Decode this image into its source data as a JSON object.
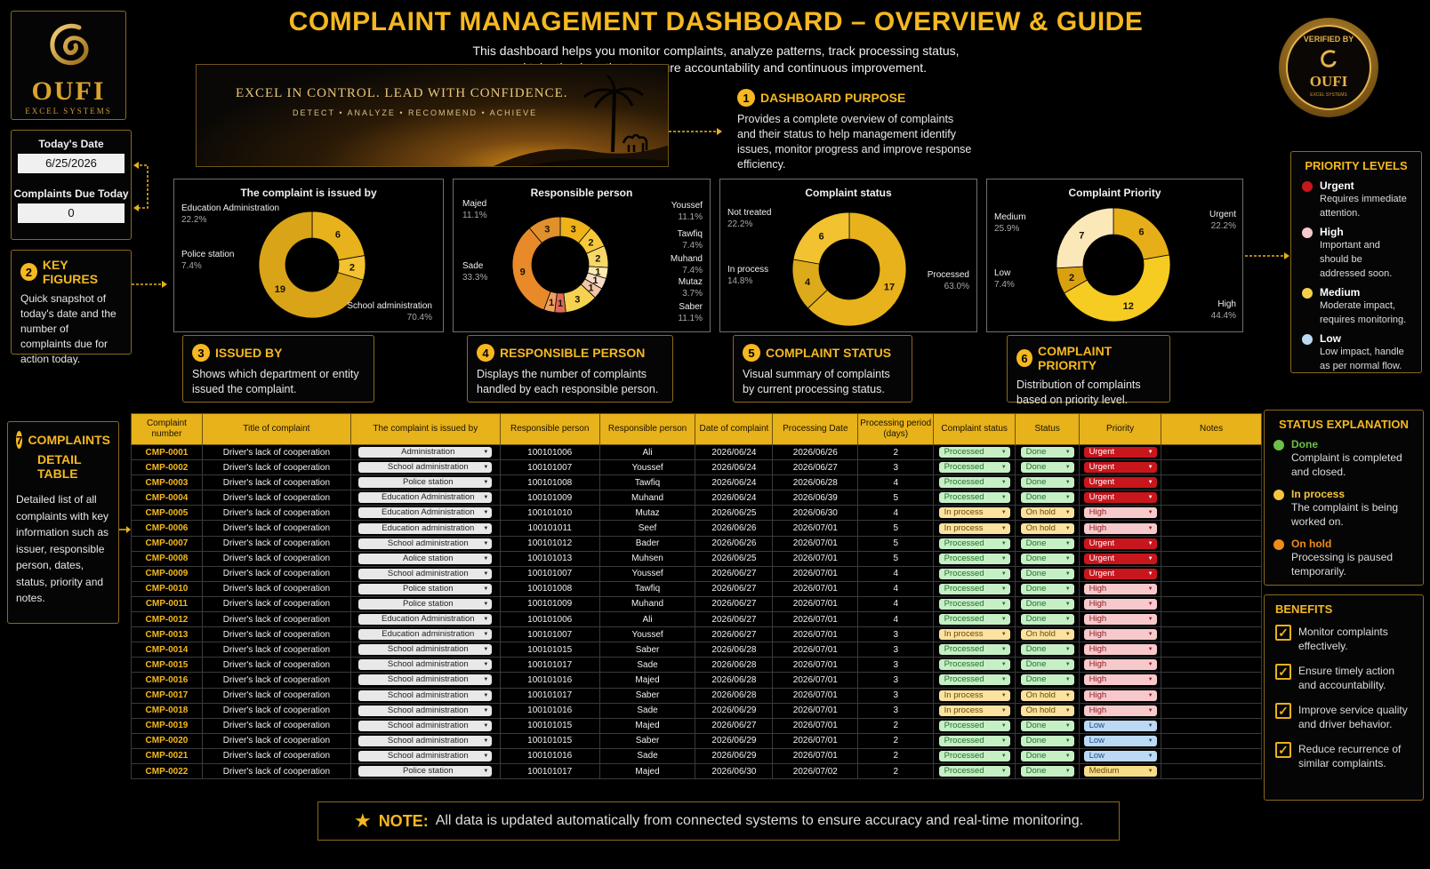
{
  "logo": {
    "brand": "OUFI",
    "sub": "EXCEL SYSTEMS"
  },
  "header": {
    "title": "COMPLAINT MANAGEMENT DASHBOARD – OVERVIEW & GUIDE",
    "intro": "This dashboard helps you monitor complaints, analyze patterns, track processing status, and take timely action to ensure accountability and continuous improvement."
  },
  "banner": {
    "slogan": "EXCEL IN CONTROL. LEAD WITH CONFIDENCE.",
    "tags": "DETECT • ANALYZE • RECOMMEND • ACHIEVE"
  },
  "seal": {
    "top": "VERIFIED BY",
    "brand": "OUFI",
    "sub": "EXCEL SYSTEMS"
  },
  "key_box": {
    "date_label": "Today's Date",
    "date_value": "6/25/2026",
    "due_label": "Complaints Due Today",
    "due_value": "0"
  },
  "sections": {
    "purpose": {
      "num": "1",
      "title": "DASHBOARD PURPOSE",
      "text": "Provides a complete overview of complaints and their status to help management identify issues, monitor progress and improve response efficiency."
    },
    "key_figures": {
      "num": "2",
      "title": "KEY FIGURES",
      "text": "Quick snapshot of today's date and the number of complaints due for action today."
    },
    "issued_by": {
      "num": "3",
      "title": "ISSUED BY",
      "text": "Shows which department or entity issued the complaint."
    },
    "responsible": {
      "num": "4",
      "title": "RESPONSIBLE PERSON",
      "text": "Displays the number of complaints handled by each responsible person."
    },
    "status": {
      "num": "5",
      "title": "COMPLAINT STATUS",
      "text": "Visual summary of complaints by current processing status."
    },
    "priority": {
      "num": "6",
      "title": "COMPLAINT PRIORITY",
      "text": "Distribution of complaints based on priority level."
    },
    "detail": {
      "num": "7",
      "title1": "COMPLAINTS",
      "title2": "DETAIL TABLE",
      "text": "Detailed list of all complaints with key information such as issuer, responsible person, dates, status, priority and notes."
    }
  },
  "priority_levels": {
    "title": "PRIORITY LEVELS",
    "items": [
      {
        "name": "Urgent",
        "desc": "Requires immediate attention.",
        "color": "#c8161d"
      },
      {
        "name": "High",
        "desc": "Important and should be addressed soon.",
        "color": "#f8c9cc"
      },
      {
        "name": "Medium",
        "desc": "Moderate impact, requires monitoring.",
        "color": "#f6d04a"
      },
      {
        "name": "Low",
        "desc": "Low impact, handle as per normal flow.",
        "color": "#bcd9f4"
      }
    ]
  },
  "status_explanation": {
    "title": "STATUS EXPLANATION",
    "items": [
      {
        "name": "Done",
        "desc": "Complaint is completed and closed.",
        "color": "#6cc04a"
      },
      {
        "name": "In process",
        "desc": "The complaint is being worked on.",
        "color": "#f5c542"
      },
      {
        "name": "On hold",
        "desc": "Processing is paused temporarily.",
        "color": "#f08c1a"
      }
    ]
  },
  "benefits": {
    "title": "BENEFITS",
    "items": [
      "Monitor complaints effectively.",
      "Ensure timely action and accountability.",
      "Improve service quality and driver behavior.",
      "Reduce recurrence of similar complaints."
    ]
  },
  "note": {
    "label": "NOTE:",
    "text": "All data is updated automatically from connected systems to ensure accuracy and real-time monitoring."
  },
  "chart_data": [
    {
      "type": "pie",
      "title": "The complaint is issued by",
      "slices": [
        {
          "name": "Education Administration",
          "value": 6,
          "pct": "22.2%",
          "color": "#e8b21c"
        },
        {
          "name": "Police station",
          "value": 2,
          "pct": "7.4%",
          "color": "#f2c230"
        },
        {
          "name": "School administration",
          "value": 19,
          "pct": "70.4%",
          "color": "#d9a418"
        }
      ]
    },
    {
      "type": "pie",
      "title": "Responsible person",
      "slices": [
        {
          "name": "Youssef",
          "value": 3,
          "pct": "11.1%",
          "color": "#f0b21a"
        },
        {
          "name": "Tawfiq",
          "value": 2,
          "pct": "7.4%",
          "color": "#f6c93c"
        },
        {
          "name": "Muhand",
          "value": 2,
          "pct": "7.4%",
          "color": "#f7d768"
        },
        {
          "name": "Mutaz",
          "value": 1,
          "pct": "3.7%",
          "color": "#fbe9b0"
        },
        {
          "name": "",
          "value": 1,
          "pct": "",
          "color": "#f9dcc8"
        },
        {
          "name": "",
          "value": 1,
          "pct": "",
          "color": "#f2c6a8"
        },
        {
          "name": "Saber",
          "value": 3,
          "pct": "11.1%",
          "color": "#f5d250"
        },
        {
          "name": "",
          "value": 1,
          "pct": "",
          "color": "#e06a5a"
        },
        {
          "name": "",
          "value": 1,
          "pct": "",
          "color": "#f0a060"
        },
        {
          "name": "Sade",
          "value": 9,
          "pct": "33.3%",
          "color": "#e8892a"
        },
        {
          "name": "Majed",
          "value": 3,
          "pct": "11.1%",
          "color": "#e0902c"
        }
      ]
    },
    {
      "type": "pie",
      "title": "Complaint status",
      "slices": [
        {
          "name": "Processed",
          "value": 17,
          "pct": "63.0%",
          "color": "#e8b21c"
        },
        {
          "name": "In process",
          "value": 4,
          "pct": "14.8%",
          "color": "#dcaa1a"
        },
        {
          "name": "Not treated",
          "value": 6,
          "pct": "22.2%",
          "color": "#f2c230"
        }
      ]
    },
    {
      "type": "pie",
      "title": "Complaint Priority",
      "slices": [
        {
          "name": "Urgent",
          "value": 6,
          "pct": "22.2%",
          "color": "#e6ae18"
        },
        {
          "name": "High",
          "value": 12,
          "pct": "44.4%",
          "color": "#f6cc22"
        },
        {
          "name": "Low",
          "value": 2,
          "pct": "7.4%",
          "color": "#d9a010"
        },
        {
          "name": "Medium",
          "value": 7,
          "pct": "25.9%",
          "color": "#fbe8b8"
        }
      ]
    }
  ],
  "table": {
    "headers": [
      "Complaint number",
      "Title of complaint",
      "The complaint is issued by",
      "Responsible person",
      "Responsible person",
      "Date of complaint",
      "Processing Date",
      "Processing period (days)",
      "Complaint status",
      "Status",
      "Priority",
      "Notes"
    ],
    "rows": [
      [
        "CMP-0001",
        "Driver's lack of cooperation",
        "Administration",
        "100101006",
        "Ali",
        "2026/06/24",
        "2026/06/26",
        "2",
        "Processed",
        "Done",
        "Urgent",
        ""
      ],
      [
        "CMP-0002",
        "Driver's lack of cooperation",
        "School administration",
        "100101007",
        "Youssef",
        "2026/06/24",
        "2026/06/27",
        "3",
        "Processed",
        "Done",
        "Urgent",
        ""
      ],
      [
        "CMP-0003",
        "Driver's lack of cooperation",
        "Police station",
        "100101008",
        "Tawfiq",
        "2026/06/24",
        "2026/06/28",
        "4",
        "Processed",
        "Done",
        "Urgent",
        ""
      ],
      [
        "CMP-0004",
        "Driver's lack of cooperation",
        "Education Administration",
        "100101009",
        "Muhand",
        "2026/06/24",
        "2026/06/39",
        "5",
        "Processed",
        "Done",
        "Urgent",
        ""
      ],
      [
        "CMP-0005",
        "Driver's lack of cooperation",
        "Education Administration",
        "100101010",
        "Mutaz",
        "2026/06/25",
        "2026/06/30",
        "4",
        "In process",
        "On hold",
        "High",
        ""
      ],
      [
        "CMP-0006",
        "Driver's lack of cooperation",
        "Education administration",
        "100101011",
        "Seef",
        "2026/06/26",
        "2026/07/01",
        "5",
        "In process",
        "On hold",
        "High",
        ""
      ],
      [
        "CMP-0007",
        "Driver's lack of cooperation",
        "School administration",
        "100101012",
        "Bader",
        "2026/06/26",
        "2026/07/01",
        "5",
        "Processed",
        "Done",
        "Urgent",
        ""
      ],
      [
        "CMP-0008",
        "Driver's lack of cooperation",
        "Aolice station",
        "100101013",
        "Muhsen",
        "2026/06/25",
        "2026/07/01",
        "5",
        "Processed",
        "Done",
        "Urgent",
        ""
      ],
      [
        "CMP-0009",
        "Driver's lack of cooperation",
        "School administration",
        "100101007",
        "Youssef",
        "2026/06/27",
        "2026/07/01",
        "4",
        "Processed",
        "Done",
        "Urgent",
        ""
      ],
      [
        "CMP-0010",
        "Driver's lack of cooperation",
        "Police station",
        "100101008",
        "Tawfiq",
        "2026/06/27",
        "2026/07/01",
        "4",
        "Processed",
        "Done",
        "High",
        ""
      ],
      [
        "CMP-0011",
        "Driver's lack of cooperation",
        "Police station",
        "100101009",
        "Muhand",
        "2026/06/27",
        "2026/07/01",
        "4",
        "Processed",
        "Done",
        "High",
        ""
      ],
      [
        "CMP-0012",
        "Driver's lack of cooperation",
        "Education Administration",
        "100101006",
        "Ali",
        "2026/06/27",
        "2026/07/01",
        "4",
        "Processed",
        "Done",
        "High",
        ""
      ],
      [
        "CMP-0013",
        "Driver's lack of cooperation",
        "Education administration",
        "100101007",
        "Youssef",
        "2026/06/27",
        "2026/07/01",
        "3",
        "In process",
        "On hold",
        "High",
        ""
      ],
      [
        "CMP-0014",
        "Driver's lack of cooperation",
        "School administration",
        "100101015",
        "Saber",
        "2026/06/28",
        "2026/07/01",
        "3",
        "Processed",
        "Done",
        "High",
        ""
      ],
      [
        "CMP-0015",
        "Driver's lack of cooperation",
        "School administration",
        "100101017",
        "Sade",
        "2026/06/28",
        "2026/07/01",
        "3",
        "Processed",
        "Done",
        "High",
        ""
      ],
      [
        "CMP-0016",
        "Driver's lack of cooperation",
        "School administration",
        "100101016",
        "Majed",
        "2026/06/28",
        "2026/07/01",
        "3",
        "Processed",
        "Done",
        "High",
        ""
      ],
      [
        "CMP-0017",
        "Driver's lack of cooperation",
        "School administration",
        "100101017",
        "Saber",
        "2026/06/28",
        "2026/07/01",
        "3",
        "In process",
        "On hold",
        "High",
        ""
      ],
      [
        "CMP-0018",
        "Driver's lack of cooperation",
        "School administration",
        "100101016",
        "Sade",
        "2026/06/29",
        "2026/07/01",
        "3",
        "In process",
        "On hold",
        "High",
        ""
      ],
      [
        "CMP-0019",
        "Driver's lack of cooperation",
        "School administration",
        "100101015",
        "Majed",
        "2026/06/27",
        "2026/07/01",
        "2",
        "Processed",
        "Done",
        "Low",
        ""
      ],
      [
        "CMP-0020",
        "Driver's lack of cooperation",
        "School administration",
        "100101015",
        "Saber",
        "2026/06/29",
        "2026/07/01",
        "2",
        "Processed",
        "Done",
        "Low",
        ""
      ],
      [
        "CMP-0021",
        "Driver's lack of cooperation",
        "School administration",
        "100101016",
        "Sade",
        "2026/06/29",
        "2026/07/01",
        "2",
        "Processed",
        "Done",
        "Low",
        ""
      ],
      [
        "CMP-0022",
        "Driver's lack of cooperation",
        "Police station",
        "100101017",
        "Majed",
        "2026/06/30",
        "2026/07/02",
        "2",
        "Processed",
        "Done",
        "Medium",
        ""
      ]
    ]
  }
}
